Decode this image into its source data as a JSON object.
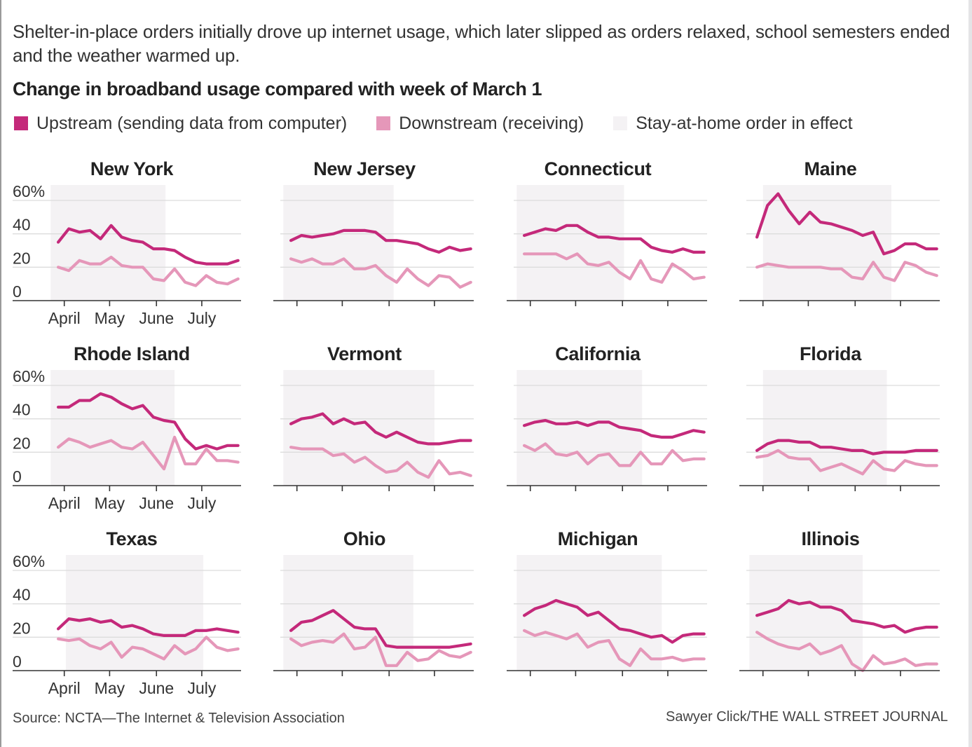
{
  "intro": "Shelter-in-place orders initially drove up internet usage, which later slipped as orders relaxed, school semesters ended and the weather warmed up.",
  "title": "Change in broadband usage compared with week of March 1",
  "legend": [
    {
      "label": "Upstream (sending data from computer)",
      "color": "#c4297a",
      "key": "upstream"
    },
    {
      "label": "Downstream (receiving)",
      "color": "#e597b9",
      "key": "downstream"
    },
    {
      "label": "Stay-at-home order in effect",
      "color": "#f4f2f4",
      "key": "stay_at_home"
    }
  ],
  "footer": {
    "source": "Source: NCTA—The Internet & Television Association",
    "credit": "Sawyer Click/THE WALL STREET JOURNAL"
  },
  "colors": {
    "upstream": "#c4297a",
    "downstream": "#e597b9",
    "shade": "#f4f2f4",
    "grid": "#dcdcdc",
    "axis": "#333333"
  },
  "chart_data": {
    "type": "line",
    "title": "Change in broadband usage compared with week of March 1",
    "xlabel": "",
    "ylabel": "",
    "x_unit": "days since March 1, 2020",
    "x": [
      27,
      34,
      41,
      48,
      55,
      62,
      69,
      76,
      83,
      90,
      97,
      104,
      111,
      118,
      125,
      132,
      139,
      146
    ],
    "xlim": [
      20,
      148
    ],
    "ylim": [
      0,
      60
    ],
    "yticks": [
      0,
      20,
      40,
      60
    ],
    "ytick_labels": [
      "0",
      "20",
      "40",
      "60%"
    ],
    "xticks": [
      31,
      61,
      92,
      122
    ],
    "xtick_labels": [
      "April",
      "May",
      "June",
      "July"
    ],
    "grid": true,
    "legend_position": "top-left",
    "panels": [
      {
        "name": "New York",
        "stay_at_home": [
          22,
          98
        ],
        "series": [
          {
            "name": "Upstream",
            "values": [
              35,
              43,
              41,
              42,
              37,
              45,
              38,
              36,
              35,
              31,
              31,
              30,
              26,
              23,
              22,
              22,
              22,
              24
            ]
          },
          {
            "name": "Downstream",
            "values": [
              20,
              18,
              24,
              22,
              22,
              26,
              21,
              20,
              20,
              13,
              12,
              19,
              11,
              9,
              15,
              11,
              10,
              13
            ]
          }
        ]
      },
      {
        "name": "New Jersey",
        "stay_at_home": [
          22,
          95
        ],
        "series": [
          {
            "name": "Upstream",
            "values": [
              36,
              39,
              38,
              39,
              40,
              42,
              42,
              42,
              41,
              36,
              36,
              35,
              34,
              31,
              29,
              32,
              30,
              31
            ]
          },
          {
            "name": "Downstream",
            "values": [
              25,
              23,
              25,
              22,
              22,
              25,
              19,
              19,
              21,
              15,
              11,
              19,
              13,
              9,
              15,
              14,
              8,
              11
            ]
          }
        ]
      },
      {
        "name": "Connecticut",
        "stay_at_home": [
          22,
          93
        ],
        "series": [
          {
            "name": "Upstream",
            "values": [
              39,
              41,
              43,
              42,
              45,
              45,
              41,
              38,
              38,
              37,
              37,
              37,
              32,
              30,
              29,
              31,
              29,
              29
            ]
          },
          {
            "name": "Downstream",
            "values": [
              28,
              28,
              28,
              28,
              25,
              28,
              22,
              21,
              23,
              17,
              13,
              24,
              13,
              11,
              22,
              18,
              13,
              14
            ]
          }
        ]
      },
      {
        "name": "Maine",
        "stay_at_home": [
          31,
          116
        ],
        "series": [
          {
            "name": "Upstream",
            "values": [
              38,
              57,
              64,
              54,
              46,
              53,
              47,
              46,
              44,
              42,
              39,
              41,
              28,
              30,
              34,
              34,
              31,
              31
            ]
          },
          {
            "name": "Downstream",
            "values": [
              20,
              22,
              21,
              20,
              20,
              20,
              20,
              19,
              19,
              14,
              13,
              23,
              14,
              12,
              23,
              21,
              17,
              15
            ]
          }
        ]
      },
      {
        "name": "Rhode Island",
        "stay_at_home": [
          22,
          104
        ],
        "series": [
          {
            "name": "Upstream",
            "values": [
              47,
              47,
              51,
              51,
              55,
              53,
              49,
              46,
              48,
              41,
              39,
              38,
              28,
              22,
              24,
              22,
              24,
              24
            ]
          },
          {
            "name": "Downstream",
            "values": [
              23,
              28,
              26,
              23,
              25,
              27,
              23,
              22,
              26,
              18,
              10,
              29,
              13,
              13,
              22,
              15,
              15,
              14
            ]
          }
        ]
      },
      {
        "name": "Vermont",
        "stay_at_home": [
          22,
          122
        ],
        "series": [
          {
            "name": "Upstream",
            "values": [
              37,
              40,
              41,
              43,
              37,
              40,
              37,
              38,
              32,
              29,
              32,
              29,
              26,
              25,
              25,
              26,
              27,
              27
            ]
          },
          {
            "name": "Downstream",
            "values": [
              23,
              22,
              22,
              22,
              18,
              19,
              14,
              17,
              12,
              8,
              9,
              14,
              8,
              5,
              15,
              7,
              8,
              6
            ]
          }
        ]
      },
      {
        "name": "California",
        "stay_at_home": [
          22,
          105
        ],
        "series": [
          {
            "name": "Upstream",
            "values": [
              36,
              38,
              39,
              37,
              37,
              38,
              36,
              38,
              38,
              35,
              34,
              33,
              30,
              29,
              29,
              31,
              33,
              32
            ]
          },
          {
            "name": "Downstream",
            "values": [
              24,
              21,
              25,
              19,
              18,
              20,
              13,
              18,
              19,
              12,
              12,
              20,
              13,
              13,
              21,
              15,
              16,
              16
            ]
          }
        ]
      },
      {
        "name": "Florida",
        "stay_at_home": [
          31,
          113
        ],
        "series": [
          {
            "name": "Upstream",
            "values": [
              21,
              25,
              27,
              27,
              26,
              26,
              23,
              23,
              22,
              21,
              21,
              19,
              20,
              20,
              20,
              21,
              21,
              21
            ]
          },
          {
            "name": "Downstream",
            "values": [
              17,
              18,
              21,
              17,
              16,
              16,
              9,
              11,
              13,
              10,
              7,
              15,
              10,
              9,
              15,
              13,
              12,
              12
            ]
          }
        ]
      },
      {
        "name": "Texas",
        "stay_at_home": [
          32,
          123
        ],
        "series": [
          {
            "name": "Upstream",
            "values": [
              25,
              31,
              30,
              31,
              29,
              30,
              26,
              27,
              25,
              22,
              21,
              21,
              21,
              24,
              24,
              25,
              24,
              23
            ]
          },
          {
            "name": "Downstream",
            "values": [
              19,
              18,
              19,
              15,
              13,
              17,
              8,
              14,
              13,
              10,
              7,
              15,
              10,
              13,
              20,
              14,
              12,
              13
            ]
          }
        ]
      },
      {
        "name": "Ohio",
        "stay_at_home": [
          22,
          108
        ],
        "series": [
          {
            "name": "Upstream",
            "values": [
              24,
              29,
              30,
              33,
              36,
              31,
              26,
              25,
              25,
              15,
              14,
              14,
              14,
              14,
              14,
              14,
              15,
              16
            ]
          },
          {
            "name": "Downstream",
            "values": [
              19,
              15,
              17,
              18,
              17,
              22,
              13,
              14,
              20,
              3,
              3,
              11,
              6,
              7,
              12,
              9,
              8,
              11
            ]
          }
        ]
      },
      {
        "name": "Michigan",
        "stay_at_home": [
          22,
          118
        ],
        "series": [
          {
            "name": "Upstream",
            "values": [
              33,
              37,
              39,
              42,
              40,
              38,
              33,
              35,
              30,
              25,
              24,
              22,
              20,
              21,
              17,
              21,
              22,
              22
            ]
          },
          {
            "name": "Downstream",
            "values": [
              24,
              21,
              23,
              21,
              19,
              22,
              14,
              17,
              18,
              7,
              3,
              13,
              7,
              7,
              8,
              6,
              7,
              7
            ]
          }
        ]
      },
      {
        "name": "Illinois",
        "stay_at_home": [
          22,
          97
        ],
        "series": [
          {
            "name": "Upstream",
            "values": [
              33,
              35,
              37,
              42,
              40,
              41,
              38,
              38,
              36,
              30,
              29,
              28,
              26,
              27,
              23,
              25,
              26,
              26
            ]
          },
          {
            "name": "Downstream",
            "values": [
              23,
              19,
              16,
              14,
              13,
              16,
              10,
              12,
              15,
              4,
              0,
              9,
              4,
              5,
              7,
              3,
              4,
              4
            ]
          }
        ]
      }
    ]
  }
}
